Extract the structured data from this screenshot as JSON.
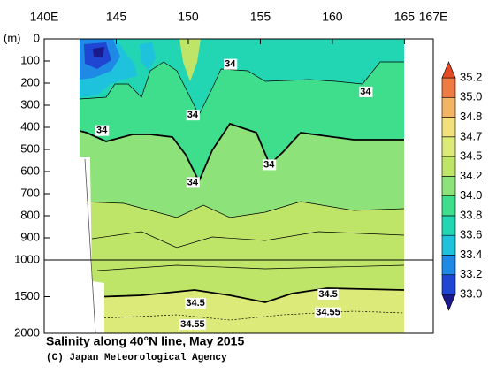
{
  "chart_data": {
    "type": "contour",
    "title": "Salinity along 40°N line, May 2015",
    "credit": "(C) Japan Meteorological Agency",
    "y_label": "(m)",
    "xlim": [
      140,
      167
    ],
    "xticks": [
      {
        "value": 140,
        "label": "140E"
      },
      145,
      150,
      155,
      160,
      165,
      {
        "value": 167,
        "label": "167E"
      }
    ],
    "ylim": [
      0,
      2000
    ],
    "yticks": [
      0,
      100,
      200,
      300,
      400,
      500,
      600,
      700,
      800,
      900,
      1000,
      1500,
      2000
    ],
    "colorbar": {
      "ticks": [
        {
          "value": 33,
          "label": "33.0"
        },
        33.2,
        33.4,
        33.6,
        33.8,
        {
          "value": 34,
          "label": "34.0"
        },
        34.2,
        34.5,
        34.7,
        34.8,
        {
          "value": 35,
          "label": "35.0"
        },
        35.2
      ],
      "colors": [
        "#1a1a8c",
        "#1e46d2",
        "#1e8ae6",
        "#1ec2dc",
        "#22d6b4",
        "#3ede8c",
        "#8ee27a",
        "#bee468",
        "#dcea7a",
        "#f2e07c",
        "#f4b466",
        "#ee7a44",
        "#e24a24"
      ]
    },
    "contour_labels": [
      {
        "x": 152.9,
        "depth": 115,
        "value": 34
      },
      {
        "x": 162.3,
        "depth": 240,
        "value": 34
      },
      {
        "x": 150.3,
        "depth": 345,
        "value": 34
      },
      {
        "x": 144.0,
        "depth": 415,
        "value": 34
      },
      {
        "x": 155.6,
        "depth": 570,
        "value": 34
      },
      {
        "x": 150.3,
        "depth": 650,
        "value": 34
      },
      {
        "x": 150.5,
        "depth": 1590,
        "value": 34.5
      },
      {
        "x": 159.7,
        "depth": 1470,
        "value": 34.5
      },
      {
        "x": 150.3,
        "depth": 1880,
        "value": 34.55
      },
      {
        "x": 159.7,
        "depth": 1720,
        "value": 34.55
      }
    ]
  }
}
